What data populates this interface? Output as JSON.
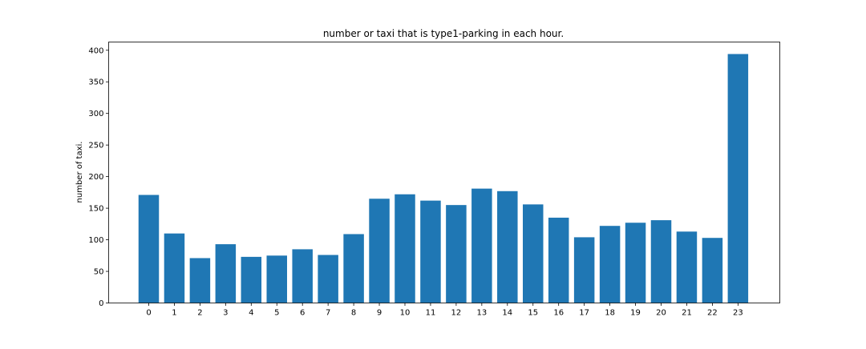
{
  "chart_data": {
    "type": "bar",
    "title": "number or taxi that is type1-parking in each hour.",
    "xlabel": "",
    "ylabel": "number of taxi.",
    "categories": [
      "0",
      "1",
      "2",
      "3",
      "4",
      "5",
      "6",
      "7",
      "8",
      "9",
      "10",
      "11",
      "12",
      "13",
      "14",
      "15",
      "16",
      "17",
      "18",
      "19",
      "20",
      "21",
      "22",
      "23"
    ],
    "values": [
      171,
      110,
      71,
      93,
      73,
      75,
      85,
      76,
      109,
      165,
      172,
      162,
      155,
      181,
      177,
      156,
      135,
      104,
      122,
      127,
      131,
      113,
      103,
      394
    ],
    "ylim": [
      0,
      413
    ],
    "yticks": [
      0,
      50,
      100,
      150,
      200,
      250,
      300,
      350,
      400
    ],
    "bar_color": "#1f77b4",
    "grid": false,
    "legend": "none"
  }
}
